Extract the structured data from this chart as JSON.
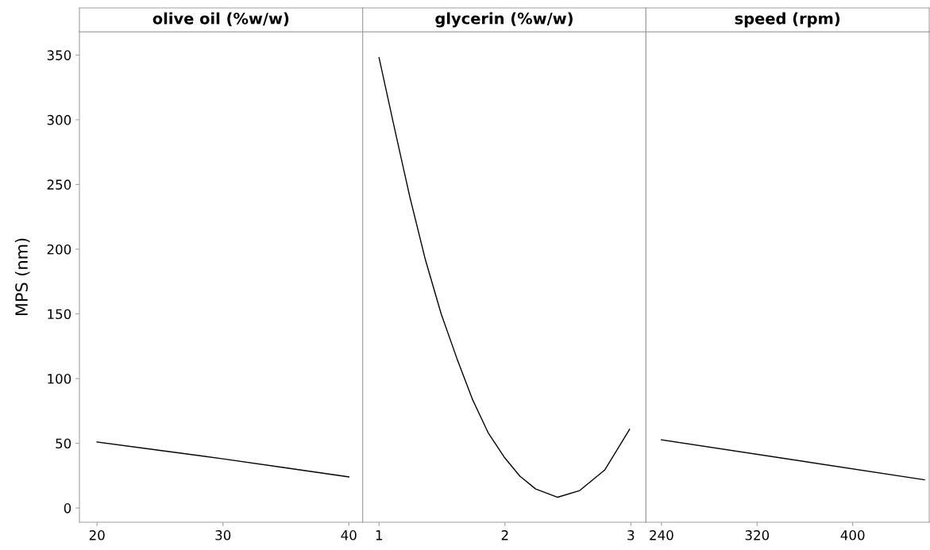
{
  "chart_data": [
    {
      "type": "line",
      "title": "olive oil (%w/w)",
      "ylabel": "MPS (nm)",
      "x": [
        20,
        25,
        30,
        35,
        40
      ],
      "series": [
        {
          "color": "#000000",
          "values": [
            51,
            44.5,
            38,
            31,
            24
          ]
        }
      ],
      "xlim": [
        18.6,
        41.1
      ],
      "xticks": [
        20,
        30,
        40
      ],
      "ylim": [
        -11,
        368
      ],
      "yticks": [
        0,
        50,
        100,
        150,
        200,
        250,
        300,
        350
      ],
      "grid": false,
      "legend": false,
      "line_style": "solid"
    },
    {
      "type": "line",
      "title": "glycerin (%w/w)",
      "x": [
        1.0,
        1.12,
        1.244,
        1.369,
        1.494,
        1.619,
        1.744,
        1.869,
        1.994,
        2.119,
        2.244,
        2.419,
        2.594,
        2.794,
        2.99
      ],
      "series": [
        {
          "color": "#000000",
          "values": [
            348,
            294.6,
            240.6,
            191.5,
            149.8,
            115.4,
            83.5,
            57.7,
            39.3,
            24.6,
            14.7,
            8.3,
            13.5,
            29.5,
            60.8
          ]
        }
      ],
      "xlim": [
        0.87,
        3.12
      ],
      "xticks": [
        1,
        2,
        3
      ],
      "ylim": [
        -11,
        368
      ],
      "yticks": [
        0,
        50,
        100,
        150,
        200,
        250,
        300,
        350
      ],
      "tick_labels": "x",
      "grid": false,
      "legend": false,
      "line_style": "solid"
    },
    {
      "type": "line",
      "title": "speed (rpm)",
      "x": [
        240,
        460
      ],
      "series": [
        {
          "color": "#000000",
          "values": [
            52.7,
            21.8
          ]
        }
      ],
      "xlim": [
        227,
        464
      ],
      "xticks": [
        240,
        320,
        400
      ],
      "ylim": [
        -11,
        368
      ],
      "yticks": [
        0,
        50,
        100,
        150,
        200,
        250,
        300,
        350
      ],
      "tick_labels": "x",
      "grid": false,
      "legend": false,
      "line_style": "solid"
    }
  ]
}
